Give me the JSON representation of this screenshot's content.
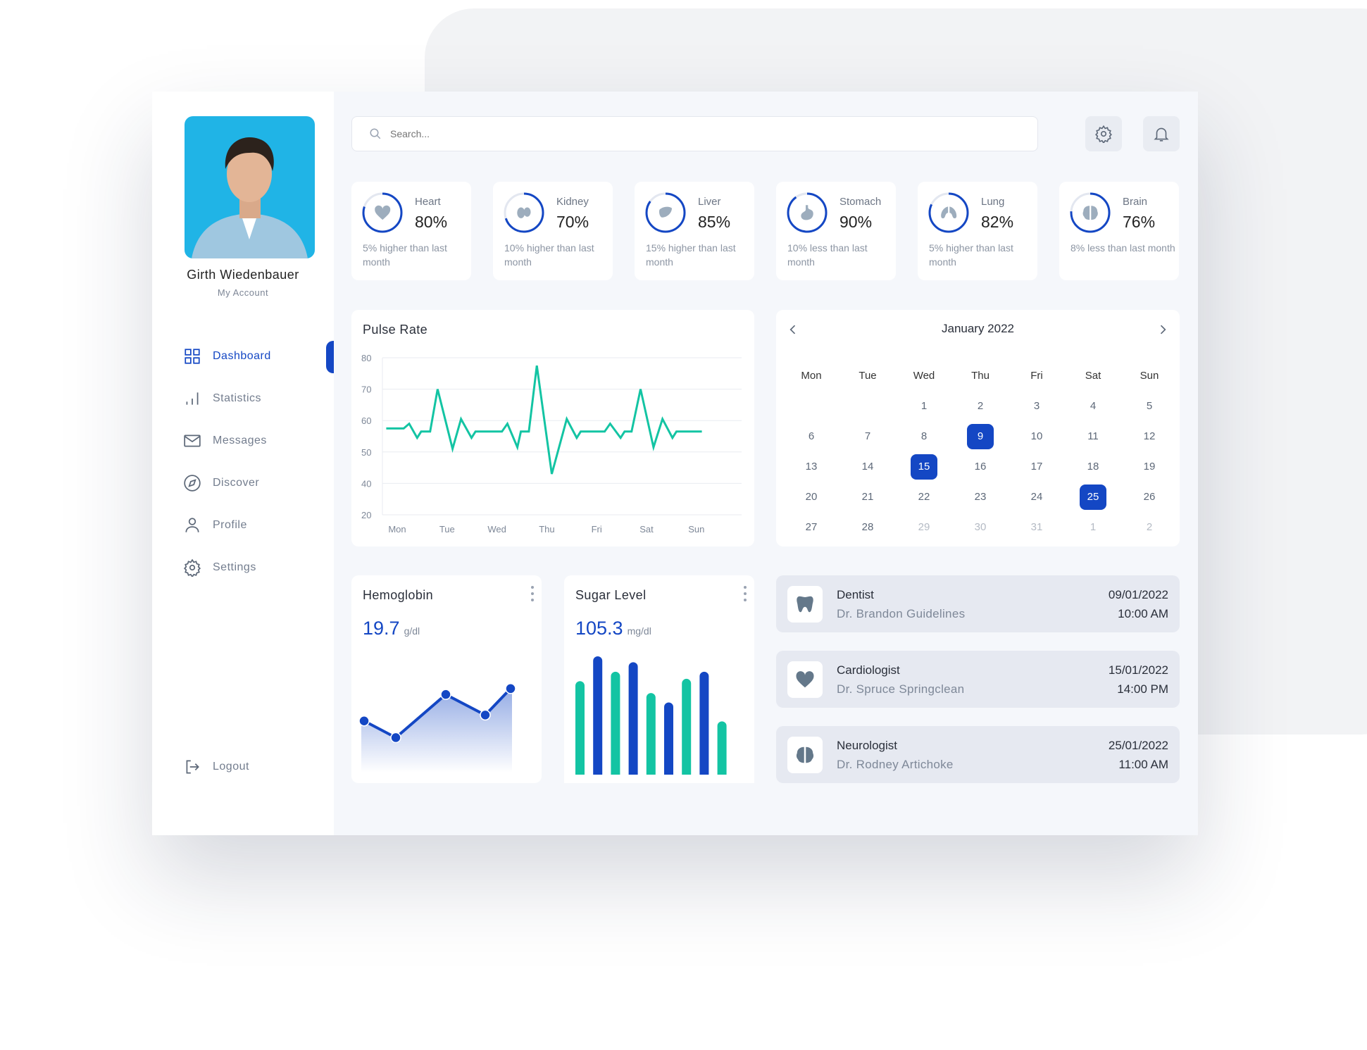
{
  "user": {
    "name": "Girth Wiedenbauer",
    "account_label": "My Account"
  },
  "nav": [
    {
      "label": "Dashboard",
      "icon": "grid-icon",
      "active": true
    },
    {
      "label": "Statistics",
      "icon": "bar-chart-icon"
    },
    {
      "label": "Messages",
      "icon": "mail-icon"
    },
    {
      "label": "Discover",
      "icon": "compass-icon"
    },
    {
      "label": "Profile",
      "icon": "user-icon"
    },
    {
      "label": "Settings",
      "icon": "gear-icon"
    }
  ],
  "logout_label": "Logout",
  "search": {
    "placeholder": "Search..."
  },
  "toolbar": {
    "settings_icon": "gear-icon",
    "notifications_icon": "bell-icon"
  },
  "stats": [
    {
      "label": "Heart",
      "value": "80%",
      "percent": 80,
      "note": "5% higher than last month",
      "icon": "heart-icon"
    },
    {
      "label": "Kidney",
      "value": "70%",
      "percent": 70,
      "note": "10% higher than last month",
      "icon": "kidney-icon"
    },
    {
      "label": "Liver",
      "value": "85%",
      "percent": 85,
      "note": "15% higher than last month",
      "icon": "liver-icon"
    },
    {
      "label": "Stomach",
      "value": "90%",
      "percent": 90,
      "note": "10% less than last month",
      "icon": "stomach-icon"
    },
    {
      "label": "Lung",
      "value": "82%",
      "percent": 82,
      "note": "5% higher than last month",
      "icon": "lung-icon"
    },
    {
      "label": "Brain",
      "value": "76%",
      "percent": 76,
      "note": "8% less than last month",
      "icon": "brain-icon"
    }
  ],
  "colors": {
    "accent": "#1447c4",
    "teal": "#13c4a3",
    "ring_track": "#e3e7f0"
  },
  "pulse": {
    "title": "Pulse Rate",
    "chart_data": {
      "type": "line",
      "title": "Pulse Rate",
      "categories": [
        "Mon",
        "Tue",
        "Wed",
        "Thu",
        "Fri",
        "Sat",
        "Sun"
      ],
      "yticks": [
        80,
        70,
        60,
        50,
        40,
        20
      ],
      "grid": true,
      "points": [
        [
          -0.22,
          57.5
        ],
        [
          0.13,
          57.5
        ],
        [
          0.24,
          59
        ],
        [
          0.4,
          54.5
        ],
        [
          0.48,
          56.5
        ],
        [
          0.66,
          56.5
        ],
        [
          0.81,
          70
        ],
        [
          1.11,
          51
        ],
        [
          1.28,
          60.5
        ],
        [
          1.49,
          54.5
        ],
        [
          1.57,
          56.5
        ],
        [
          2.1,
          56.5
        ],
        [
          2.21,
          59
        ],
        [
          2.41,
          51.5
        ],
        [
          2.48,
          56.5
        ],
        [
          2.64,
          56.5
        ],
        [
          2.8,
          77.5
        ],
        [
          3.1,
          43
        ],
        [
          3.4,
          60.5
        ],
        [
          3.6,
          54.5
        ],
        [
          3.68,
          56.5
        ],
        [
          4.16,
          56.5
        ],
        [
          4.27,
          59
        ],
        [
          4.48,
          54.5
        ],
        [
          4.56,
          56.5
        ],
        [
          4.7,
          56.5
        ],
        [
          4.88,
          70
        ],
        [
          5.14,
          51.5
        ],
        [
          5.32,
          60.5
        ],
        [
          5.52,
          54.5
        ],
        [
          5.6,
          56.5
        ],
        [
          6.11,
          56.5
        ]
      ]
    }
  },
  "calendar": {
    "month": "January 2022",
    "weekdays": [
      "Mon",
      "Tue",
      "Wed",
      "Thu",
      "Fri",
      "Sat",
      "Sun"
    ],
    "days": [
      [
        "",
        "",
        "1",
        "2",
        "3",
        "4",
        "5"
      ],
      [
        "6",
        "7",
        "8",
        "9",
        "10",
        "11",
        "12"
      ],
      [
        "13",
        "14",
        "15",
        "16",
        "17",
        "18",
        "19"
      ],
      [
        "20",
        "21",
        "22",
        "23",
        "24",
        "25",
        "26"
      ],
      [
        "27",
        "28",
        "29",
        "30",
        "31",
        "1",
        "2"
      ]
    ],
    "highlighted": [
      "9",
      "15",
      "25"
    ],
    "muted_from_index": 30
  },
  "hemoglobin": {
    "title": "Hemoglobin",
    "value": "19.7",
    "unit": "g/dl",
    "chart_data": {
      "type": "area",
      "values_relative": [
        67,
        50,
        94,
        73,
        100
      ]
    }
  },
  "sugar": {
    "title": "Sugar Level",
    "value": "105.3",
    "unit": "mg/dl",
    "chart_data": {
      "type": "bar",
      "values_relative": [
        79,
        100,
        87,
        95,
        69,
        61,
        81,
        87,
        45
      ],
      "colors": [
        "#13c4a3",
        "#1447c4",
        "#13c4a3",
        "#1447c4",
        "#13c4a3",
        "#1447c4",
        "#13c4a3",
        "#1447c4",
        "#13c4a3"
      ]
    }
  },
  "appointments": [
    {
      "type": "Dentist",
      "doctor": "Dr. Brandon Guidelines",
      "date": "09/01/2022",
      "time": "10:00 AM",
      "icon": "tooth-icon"
    },
    {
      "type": "Cardiologist",
      "doctor": "Dr. Spruce Springclean",
      "date": "15/01/2022",
      "time": "14:00 PM",
      "icon": "heart-icon"
    },
    {
      "type": "Neurologist",
      "doctor": "Dr. Rodney Artichoke",
      "date": "25/01/2022",
      "time": "11:00 AM",
      "icon": "brain-icon"
    }
  ]
}
